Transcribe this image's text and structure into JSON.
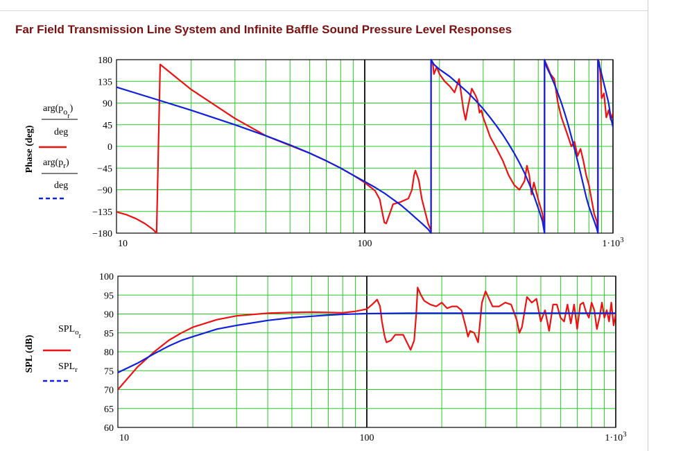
{
  "title": "Far Field Transmission Line System and Infinite Baffle Sound Pressure Level Responses",
  "colors": {
    "series_red": "#ee1111",
    "series_blue": "#1020dd",
    "grid": "#22cc22",
    "title": "#7a1010"
  },
  "chart_data": [
    {
      "type": "line",
      "xscale": "log",
      "xlim": [
        10,
        1000
      ],
      "ylim": [
        -180,
        180
      ],
      "ylabel": "Phase (deg)",
      "xticks": [
        "10",
        "100",
        "1·10^3"
      ],
      "yticks": [
        "180",
        "135",
        "90",
        "45",
        "0",
        "−45",
        "−90",
        "−135",
        "−180"
      ],
      "grid": true,
      "legend": [
        {
          "text": "arg(p_o_r) / deg",
          "style": "solid red"
        },
        {
          "text": "arg(p_r) / deg",
          "style": "dashed blue"
        }
      ],
      "series": [
        {
          "color": "#ee1111",
          "x": [
            10,
            11,
            12,
            13,
            14,
            14.5,
            15,
            20,
            30,
            40,
            50,
            60,
            70,
            80,
            90,
            100,
            110,
            115,
            118,
            120,
            122,
            125,
            128,
            130,
            140,
            150,
            155,
            158,
            160,
            165,
            170,
            180,
            185,
            185,
            188,
            190,
            195,
            200,
            210,
            220,
            230,
            240,
            250,
            255,
            260,
            270,
            280,
            285,
            290,
            295,
            300,
            310,
            320,
            340,
            360,
            380,
            400,
            420,
            440,
            450,
            460,
            470,
            480,
            500,
            520,
            530,
            530,
            540,
            560,
            580,
            600,
            620,
            640,
            660,
            680,
            700,
            720,
            740,
            760,
            780,
            800,
            820,
            840,
            860,
            870,
            870,
            880,
            890,
            900,
            920,
            940,
            960,
            980,
            1000
          ],
          "y": [
            -136,
            -142,
            -150,
            -160,
            -172,
            -180,
            170,
            118,
            58,
            22,
            2,
            -14,
            -30,
            -45,
            -60,
            -75,
            -92,
            -110,
            -140,
            -158,
            -160,
            -145,
            -130,
            -120,
            -115,
            -108,
            -90,
            -60,
            -50,
            -70,
            -110,
            -160,
            -175,
            180,
            172,
            150,
            165,
            150,
            135,
            125,
            112,
            140,
            75,
            55,
            80,
            120,
            105,
            95,
            70,
            75,
            60,
            40,
            20,
            -5,
            -30,
            -60,
            -80,
            -90,
            -72,
            -40,
            -60,
            -100,
            -75,
            -110,
            -140,
            -170,
            178,
            170,
            150,
            140,
            90,
            60,
            40,
            20,
            0,
            10,
            -20,
            -5,
            -30,
            -60,
            -80,
            -110,
            -140,
            -155,
            -175,
            180,
            175,
            150,
            100,
            110,
            60,
            75,
            55,
            70
          ]
        },
        {
          "color": "#1020dd",
          "x": [
            10,
            15,
            20,
            30,
            40,
            50,
            60,
            70,
            80,
            90,
            100,
            110,
            120,
            130,
            140,
            150,
            160,
            170,
            180,
            185,
            185,
            190,
            200,
            220,
            240,
            260,
            280,
            300,
            320,
            340,
            360,
            380,
            400,
            420,
            440,
            460,
            480,
            500,
            520,
            530,
            530,
            540,
            560,
            580,
            600,
            620,
            640,
            660,
            680,
            700,
            720,
            740,
            760,
            780,
            800,
            820,
            840,
            860,
            870,
            870,
            880,
            900,
            920,
            940,
            960,
            980,
            1000
          ],
          "y": [
            123,
            95,
            75,
            45,
            22,
            3,
            -14,
            -30,
            -45,
            -60,
            -73,
            -85,
            -97,
            -110,
            -122,
            -135,
            -148,
            -160,
            -172,
            -180,
            180,
            170,
            160,
            145,
            128,
            112,
            95,
            78,
            60,
            42,
            24,
            5,
            -14,
            -34,
            -55,
            -78,
            -102,
            -128,
            -155,
            -180,
            180,
            165,
            148,
            130,
            110,
            90,
            68,
            45,
            20,
            -5,
            -30,
            -55,
            -80,
            -105,
            -125,
            -140,
            -155,
            -170,
            -180,
            180,
            170,
            150,
            130,
            110,
            90,
            60,
            40
          ]
        }
      ]
    },
    {
      "type": "line",
      "xscale": "log",
      "xlim": [
        10,
        1000
      ],
      "ylim": [
        60,
        100
      ],
      "ylabel": "SPL (dB)",
      "xticks": [
        "10",
        "100",
        "1·10^3"
      ],
      "yticks": [
        "100",
        "95",
        "90",
        "85",
        "80",
        "75",
        "70",
        "65",
        "60"
      ],
      "grid": true,
      "legend": [
        {
          "text": "SPL_o_r",
          "style": "solid red"
        },
        {
          "text": "SPL_r",
          "style": "dashed blue"
        }
      ],
      "series": [
        {
          "color": "#ee1111",
          "x": [
            10,
            12,
            14,
            16,
            18,
            20,
            25,
            30,
            40,
            50,
            60,
            70,
            80,
            90,
            100,
            105,
            110,
            113,
            115,
            118,
            120,
            125,
            130,
            140,
            150,
            155,
            158,
            160,
            165,
            170,
            180,
            190,
            200,
            210,
            220,
            230,
            240,
            250,
            255,
            260,
            270,
            280,
            290,
            300,
            320,
            340,
            360,
            380,
            400,
            410,
            420,
            440,
            460,
            480,
            500,
            520,
            540,
            560,
            580,
            600,
            620,
            640,
            660,
            680,
            700,
            720,
            740,
            760,
            780,
            800,
            820,
            840,
            860,
            880,
            900,
            920,
            940,
            960,
            980,
            1000
          ],
          "y": [
            70,
            76,
            80,
            83,
            85,
            86.5,
            88.5,
            89.5,
            90.2,
            90.4,
            90.5,
            90.4,
            90.3,
            90.7,
            91.3,
            92.5,
            93.8,
            92,
            88,
            84,
            82.5,
            83,
            84.5,
            84.5,
            80.5,
            83,
            90,
            97,
            95,
            93.5,
            92.5,
            92,
            93,
            91.5,
            92,
            92,
            91,
            86.5,
            84,
            85.5,
            85,
            82.5,
            93,
            96,
            92,
            92,
            93,
            92.5,
            88.5,
            85,
            86.5,
            94.5,
            93,
            94,
            88,
            91,
            85.5,
            92.5,
            92.5,
            89,
            88,
            92.5,
            87.5,
            92.5,
            86,
            92.5,
            93,
            90.5,
            89,
            93,
            91,
            86,
            89,
            93,
            89,
            91,
            88,
            93,
            87,
            90
          ]
        },
        {
          "color": "#1020dd",
          "x": [
            10,
            12,
            14,
            16,
            18,
            20,
            25,
            30,
            40,
            50,
            60,
            70,
            80,
            100,
            150,
            200,
            300,
            500,
            700,
            1000
          ],
          "y": [
            74.5,
            77,
            79.5,
            81.5,
            83,
            84,
            86,
            87,
            88.3,
            89,
            89.4,
            89.7,
            89.9,
            90.1,
            90.2,
            90.2,
            90.2,
            90.2,
            90.2,
            90.2
          ]
        }
      ]
    }
  ]
}
